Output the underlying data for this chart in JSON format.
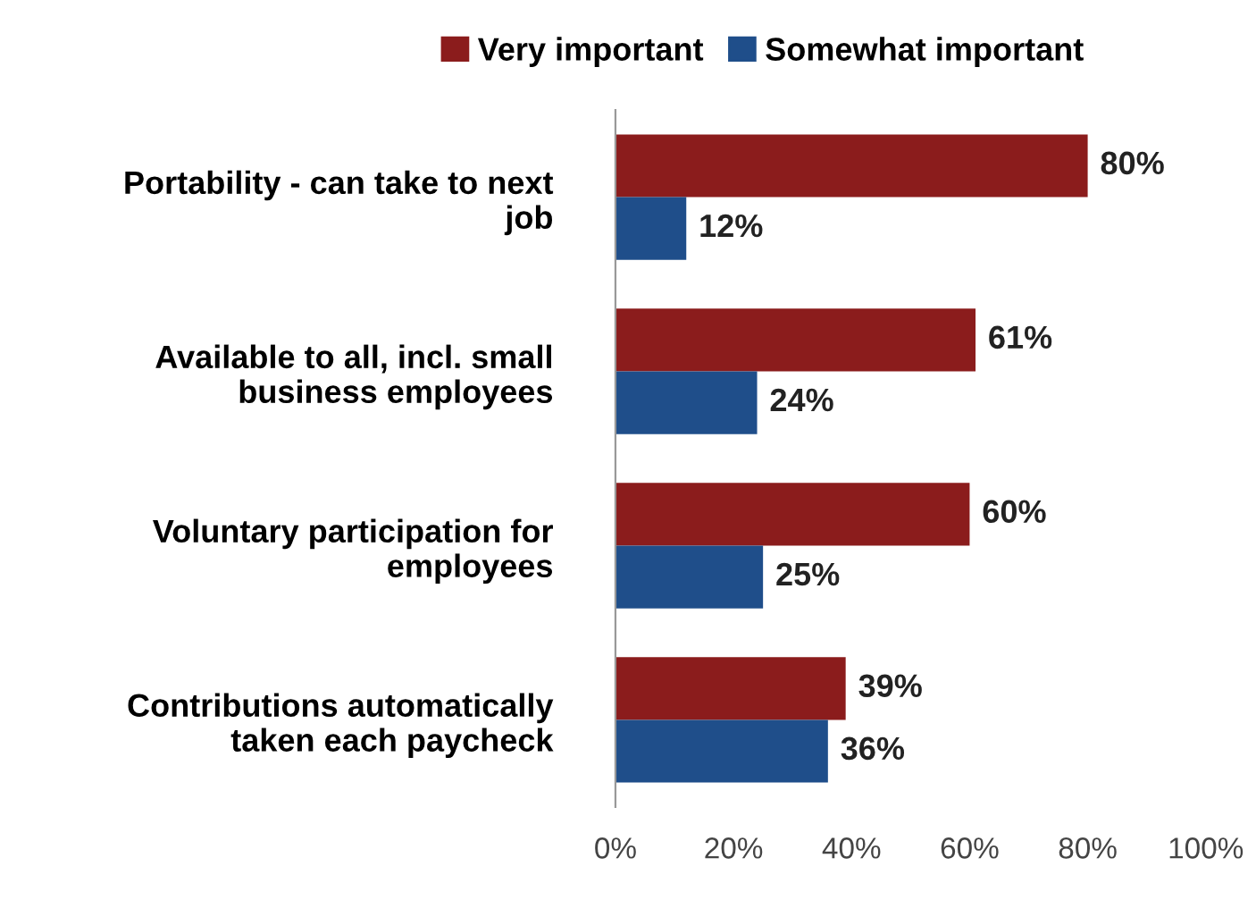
{
  "chart_data": {
    "type": "bar",
    "orientation": "horizontal",
    "categories": [
      "Portability - can take to next\njob",
      "Available to all, incl. small\nbusiness employees",
      "Voluntary participation for\nemployees",
      "Contributions automatically\ntaken each paycheck"
    ],
    "series": [
      {
        "name": "Very important",
        "color": "#8b1c1c",
        "values": [
          80,
          61,
          60,
          39
        ],
        "value_labels": [
          "80%",
          "61%",
          "60%",
          "39%"
        ]
      },
      {
        "name": "Somewhat important",
        "color": "#1f4e8a",
        "values": [
          12,
          24,
          25,
          36
        ],
        "value_labels": [
          "12%",
          "24%",
          "25%",
          "36%"
        ]
      }
    ],
    "xlim": [
      0,
      100
    ],
    "xticks": [
      {
        "value": 0,
        "label": "0%"
      },
      {
        "value": 20,
        "label": "20%"
      },
      {
        "value": 40,
        "label": "40%"
      },
      {
        "value": 60,
        "label": "60%"
      },
      {
        "value": 80,
        "label": "80%"
      },
      {
        "value": 100,
        "label": "100%"
      }
    ],
    "grid": false,
    "legend": "top"
  }
}
